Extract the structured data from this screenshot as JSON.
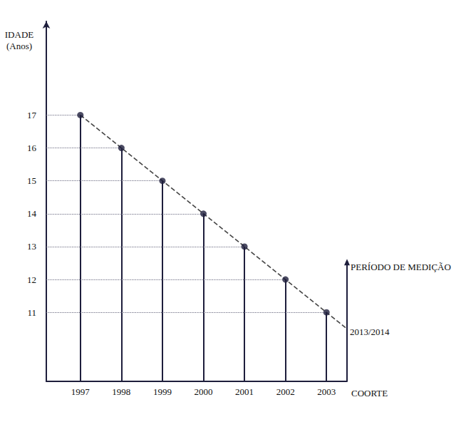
{
  "chart_data": {
    "type": "scatter",
    "xlabel": "COORTE",
    "ylabel": "IDADE\n(Anos)",
    "x": [
      1997,
      1998,
      1999,
      2000,
      2001,
      2002,
      2003
    ],
    "values": [
      17,
      16,
      15,
      14,
      13,
      12,
      11
    ],
    "color": "#1e1e3c",
    "marker": "circle",
    "xlim": [
      1996.17,
      2003.5
    ],
    "xticks": [
      1997,
      1998,
      1999,
      2000,
      2001,
      2002,
      2003
    ],
    "ylim": [
      8.9,
      19.85
    ],
    "yticks": [
      11,
      12,
      13,
      14,
      15,
      16,
      17
    ],
    "grid": false,
    "period_line": {
      "x": [
        1997,
        2003.5
      ],
      "values": [
        17,
        10.5
      ],
      "line_style": "dashed",
      "color": "#444444"
    },
    "y2label": "PERÍODO DE MEDIÇÃO",
    "period_label": "2013/2014"
  }
}
